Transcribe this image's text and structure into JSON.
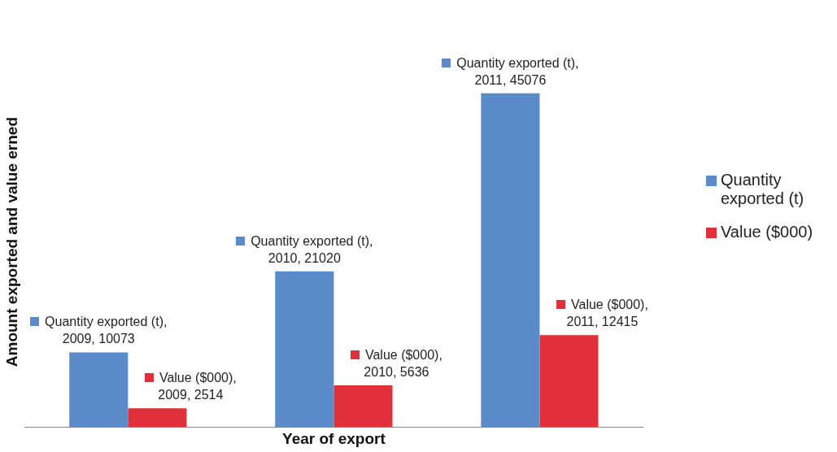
{
  "chart_data": {
    "type": "bar",
    "xlabel": "Year of export",
    "ylabel": "Amount exported and value erned",
    "categories": [
      null,
      null,
      null
    ],
    "series": [
      {
        "name": "Quantity exported (t)",
        "color": "#5b8bc9",
        "values": [
          10073,
          21020,
          45076
        ],
        "value_labels": [
          "Quantity exported (t), 2009, 10073",
          "Quantity exported (t), 2010, 21020",
          "Quantity exported (t), 2011, 45076"
        ]
      },
      {
        "name": "Value ($000)",
        "color": "#e0303a",
        "values": [
          2514,
          5636,
          12415
        ],
        "value_labels": [
          "Value ($000), 2009, 2514",
          "Value ($000), 2010, 5636",
          "Value ($000), 2011, 12415"
        ]
      }
    ],
    "tick_labels": false,
    "grid": false,
    "legend": "right"
  }
}
